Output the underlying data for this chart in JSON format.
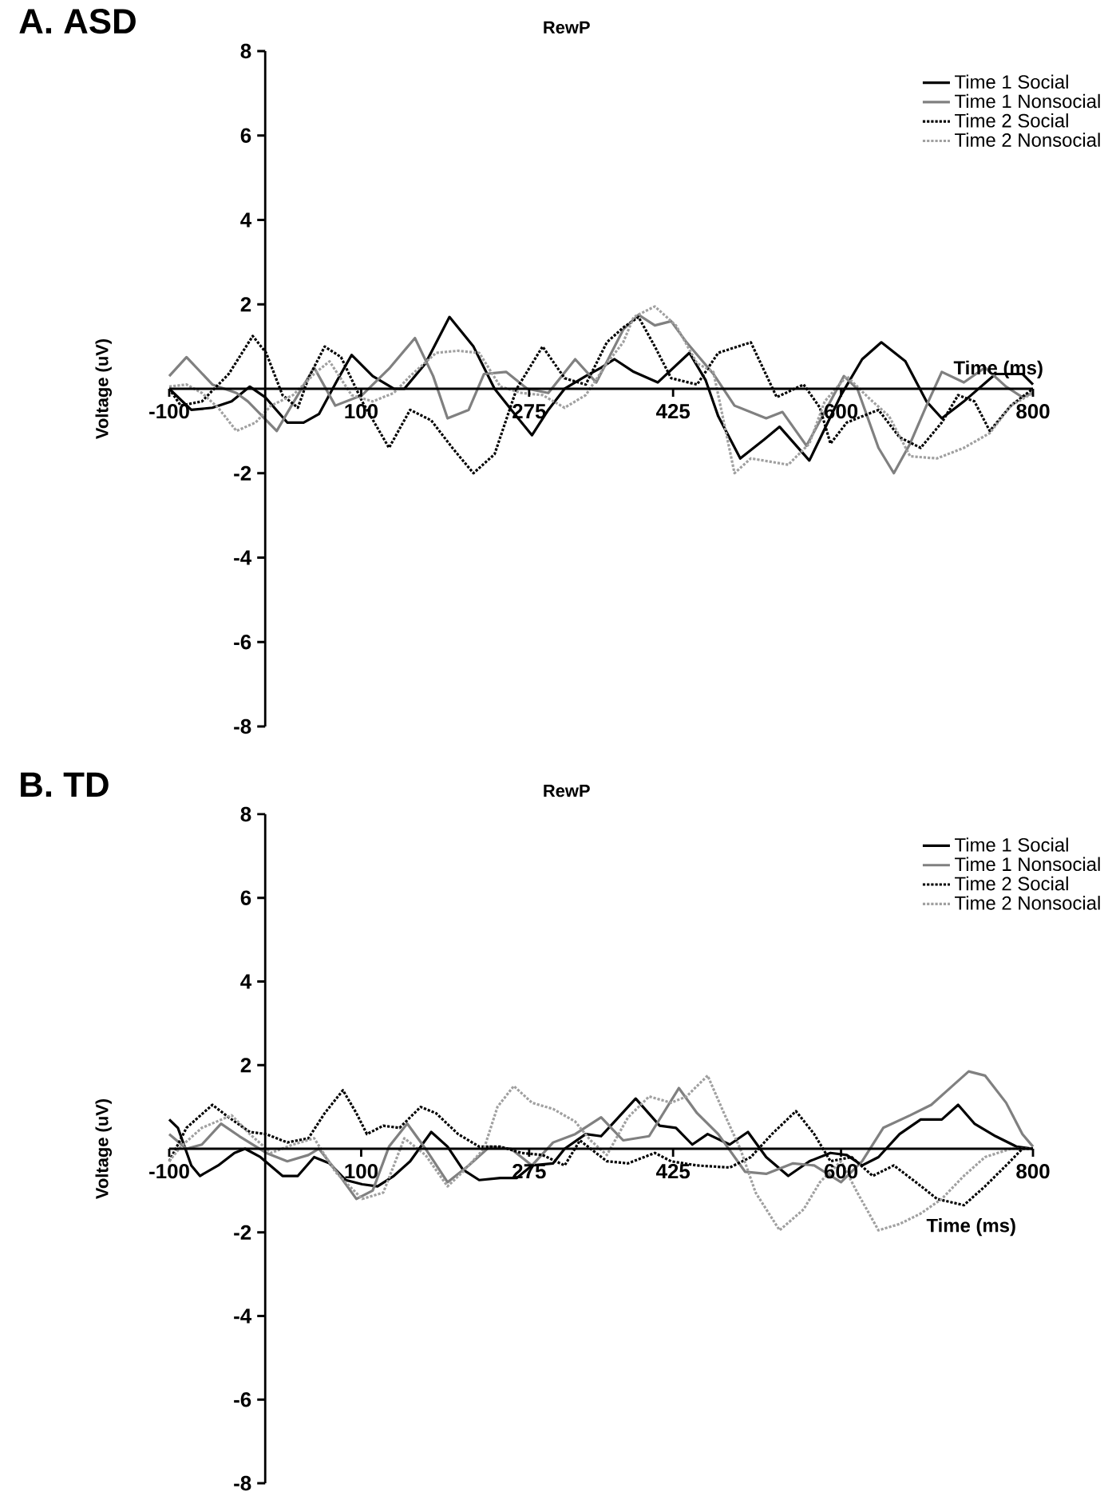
{
  "chart_data": [
    {
      "type": "line",
      "title": "A. ASD",
      "subtitle": "RewP",
      "xlabel": "Time (ms)",
      "ylabel": "Voltage (uV)",
      "xlim": [
        -100,
        800
      ],
      "ylim": [
        -8,
        8
      ],
      "xticks": [
        -100,
        100,
        275,
        425,
        600,
        800
      ],
      "yticks": [
        -8,
        -6,
        -4,
        -2,
        2,
        4,
        6,
        8
      ],
      "legend": "top right",
      "series": [
        {
          "name": "Time 1 Social",
          "color": "#000000",
          "line_style": "solid",
          "x": [
            -100,
            -77,
            -55,
            -35,
            -16,
            0,
            23,
            40,
            56,
            75,
            90,
            112,
            134,
            145,
            167,
            192,
            217,
            239,
            260,
            278,
            295,
            312,
            334,
            350,
            364,
            384,
            409,
            442,
            459,
            472,
            495,
            520,
            536,
            567,
            600,
            622,
            642,
            667,
            689,
            705,
            728,
            761,
            789,
            800
          ],
          "values": [
            0,
            -0.5,
            -0.45,
            -0.3,
            0.05,
            -0.2,
            -0.8,
            -0.8,
            -0.6,
            0.2,
            0.8,
            0.3,
            0,
            0,
            0.6,
            1.7,
            1.0,
            0,
            -0.6,
            -1.1,
            -0.5,
            0,
            0.3,
            0.5,
            0.7,
            0.4,
            0.15,
            0.85,
            0.2,
            -0.65,
            -1.65,
            -1.2,
            -0.9,
            -1.7,
            -0.15,
            0.7,
            1.1,
            0.65,
            -0.3,
            -0.7,
            -0.3,
            0.35,
            0.35,
            0.1
          ]
        },
        {
          "name": "Time 1 Nonsocial",
          "color": "#808080",
          "line_style": "solid",
          "x": [
            -100,
            -82,
            -55,
            -30,
            -18,
            12,
            30,
            51,
            73,
            101,
            130,
            156,
            175,
            190,
            212,
            228,
            251,
            273,
            295,
            323,
            345,
            373,
            389,
            406,
            423,
            439,
            467,
            489,
            522,
            539,
            564,
            583,
            603,
            617,
            639,
            655,
            672,
            689,
            705,
            728,
            750,
            772,
            789,
            800
          ],
          "values": [
            0.3,
            0.75,
            0.1,
            -0.1,
            -0.3,
            -1.0,
            -0.3,
            0.5,
            -0.4,
            -0.15,
            0.5,
            1.2,
            0.3,
            -0.7,
            -0.5,
            0.35,
            0.4,
            0,
            -0.1,
            0.7,
            0.15,
            1.4,
            1.75,
            1.5,
            1.6,
            1.1,
            0.35,
            -0.4,
            -0.7,
            -0.55,
            -1.35,
            -0.55,
            0.3,
            0,
            -1.4,
            -2.0,
            -1.3,
            -0.4,
            0.4,
            0.15,
            0.5,
            0.05,
            -0.2,
            -0.1
          ]
        },
        {
          "name": "Time 2 Social",
          "color": "#000000",
          "line_style": "dotted",
          "x": [
            -100,
            -88,
            -66,
            -38,
            -13,
            1,
            18,
            34,
            45,
            62,
            79,
            101,
            129,
            151,
            173,
            195,
            217,
            239,
            262,
            289,
            312,
            334,
            356,
            373,
            389,
            406,
            423,
            450,
            472,
            506,
            533,
            561,
            578,
            589,
            606,
            639,
            661,
            683,
            705,
            722,
            739,
            755,
            777,
            800
          ],
          "values": [
            0,
            -0.4,
            -0.3,
            0.35,
            1.25,
            0.85,
            -0.15,
            -0.45,
            0.25,
            1.0,
            0.75,
            -0.3,
            -1.4,
            -0.5,
            -0.75,
            -1.4,
            -2.0,
            -1.55,
            0,
            1.0,
            0.25,
            0.1,
            1.1,
            1.45,
            1.7,
            1.0,
            0.25,
            0.1,
            0.85,
            1.1,
            -0.2,
            0.1,
            -0.45,
            -1.3,
            -0.8,
            -0.5,
            -1.15,
            -1.4,
            -0.8,
            -0.15,
            -0.3,
            -1.0,
            -0.4,
            0
          ]
        },
        {
          "name": "Time 2 Nonsocial",
          "color": "#a0a0a0",
          "line_style": "dotted",
          "x": [
            -100,
            -82,
            -66,
            -49,
            -30,
            -10,
            6,
            29,
            51,
            67,
            90,
            112,
            134,
            151,
            178,
            201,
            223,
            245,
            267,
            289,
            312,
            334,
            356,
            373,
            384,
            406,
            428,
            450,
            467,
            489,
            506,
            545,
            567,
            583,
            606,
            628,
            650,
            672,
            700,
            728,
            755,
            777,
            800
          ],
          "values": [
            0.05,
            0.1,
            -0.1,
            -0.45,
            -1.0,
            -0.8,
            -0.4,
            -0.15,
            0.35,
            0.65,
            -0.15,
            -0.3,
            -0.1,
            0.3,
            0.85,
            0.9,
            0.85,
            0.05,
            -0.1,
            -0.15,
            -0.45,
            -0.15,
            0.6,
            1.1,
            1.7,
            1.95,
            1.5,
            0.6,
            0.4,
            -2.0,
            -1.65,
            -1.8,
            -1.3,
            -0.3,
            0.3,
            -0.2,
            -0.65,
            -1.6,
            -1.65,
            -1.4,
            -1.05,
            -0.4,
            -0.1
          ]
        }
      ]
    },
    {
      "type": "line",
      "title": "B. TD",
      "subtitle": "RewP",
      "xlabel": "Time (ms)",
      "ylabel": "Voltage (uV)",
      "xlim": [
        -100,
        800
      ],
      "ylim": [
        -8,
        8
      ],
      "xticks": [
        -100,
        100,
        275,
        425,
        600,
        800
      ],
      "yticks": [
        -8,
        -6,
        -4,
        -2,
        2,
        4,
        6,
        8
      ],
      "legend": "top right",
      "series": [
        {
          "name": "Time 1 Social",
          "color": "#000000",
          "line_style": "solid",
          "x": [
            -100,
            -91,
            -77,
            -68,
            -49,
            -32,
            -21,
            -5,
            18,
            34,
            51,
            67,
            84,
            101,
            117,
            134,
            151,
            173,
            190,
            206,
            223,
            245,
            262,
            278,
            300,
            312,
            334,
            350,
            362,
            386,
            411,
            428,
            445,
            461,
            484,
            503,
            522,
            545,
            567,
            589,
            606,
            622,
            639,
            661,
            683,
            705,
            722,
            739,
            761,
            783,
            800
          ],
          "values": [
            0.7,
            0.5,
            -0.4,
            -0.65,
            -0.4,
            -0.1,
            0,
            -0.2,
            -0.65,
            -0.65,
            -0.2,
            -0.35,
            -0.75,
            -0.85,
            -0.9,
            -0.65,
            -0.3,
            0.4,
            0.05,
            -0.5,
            -0.75,
            -0.7,
            -0.7,
            -0.4,
            -0.35,
            0,
            0.35,
            0.3,
            0.6,
            1.2,
            0.55,
            0.5,
            0.1,
            0.35,
            0.1,
            0.4,
            -0.2,
            -0.65,
            -0.3,
            -0.1,
            -0.15,
            -0.4,
            -0.2,
            0.35,
            0.7,
            0.7,
            1.05,
            0.6,
            0.3,
            0.05,
            0
          ]
        },
        {
          "name": "Time 1 Nonsocial",
          "color": "#808080",
          "line_style": "solid",
          "x": [
            -100,
            -82,
            -66,
            -46,
            -27,
            1,
            23,
            45,
            56,
            73,
            95,
            112,
            129,
            148,
            167,
            190,
            212,
            234,
            256,
            278,
            300,
            323,
            350,
            373,
            400,
            431,
            450,
            472,
            500,
            522,
            550,
            572,
            600,
            622,
            644,
            672,
            694,
            716,
            733,
            750,
            772,
            789,
            800
          ],
          "values": [
            0.35,
            0,
            0.1,
            0.6,
            0.3,
            -0.1,
            -0.3,
            -0.15,
            0,
            -0.5,
            -1.2,
            -1.0,
            0.05,
            0.6,
            0,
            -0.8,
            -0.4,
            0.05,
            0,
            -0.4,
            0.15,
            0.35,
            0.75,
            0.2,
            0.3,
            1.45,
            0.85,
            0.35,
            -0.55,
            -0.6,
            -0.35,
            -0.4,
            -0.8,
            -0.3,
            0.5,
            0.8,
            1.05,
            1.5,
            1.85,
            1.75,
            1.1,
            0.35,
            0.05
          ]
        },
        {
          "name": "Time 2 Social",
          "color": "#000000",
          "line_style": "dotted",
          "x": [
            -100,
            -82,
            -55,
            -38,
            -16,
            1,
            23,
            45,
            62,
            81,
            95,
            106,
            123,
            140,
            162,
            178,
            201,
            223,
            245,
            267,
            289,
            312,
            328,
            339,
            356,
            378,
            406,
            423,
            450,
            484,
            506,
            528,
            553,
            572,
            589,
            611,
            633,
            655,
            678,
            700,
            728,
            750,
            772,
            789,
            800
          ],
          "values": [
            -0.3,
            0.5,
            1.05,
            0.75,
            0.4,
            0.35,
            0.15,
            0.25,
            0.85,
            1.4,
            0.85,
            0.35,
            0.55,
            0.5,
            1.0,
            0.85,
            0.35,
            0.05,
            0.05,
            -0.1,
            -0.15,
            -0.4,
            0.2,
            0,
            -0.3,
            -0.35,
            -0.1,
            -0.3,
            -0.4,
            -0.45,
            -0.2,
            0.35,
            0.9,
            0.35,
            -0.3,
            -0.2,
            -0.65,
            -0.4,
            -0.8,
            -1.2,
            -1.35,
            -0.9,
            -0.4,
            0,
            0
          ]
        },
        {
          "name": "Time 2 Nonsocial",
          "color": "#a0a0a0",
          "line_style": "dotted",
          "x": [
            -100,
            -88,
            -66,
            -35,
            -16,
            6,
            29,
            51,
            73,
            101,
            123,
            145,
            167,
            190,
            206,
            228,
            242,
            259,
            278,
            300,
            323,
            339,
            356,
            378,
            400,
            423,
            439,
            461,
            478,
            495,
            511,
            536,
            561,
            578,
            600,
            617,
            639,
            661,
            683,
            705,
            728,
            750,
            777,
            800
          ],
          "values": [
            -0.3,
            0.05,
            0.5,
            0.8,
            0.35,
            -0.1,
            0.1,
            0.25,
            -0.55,
            -1.2,
            -1.05,
            0.25,
            -0.15,
            -0.9,
            -0.55,
            0,
            1.0,
            1.5,
            1.1,
            0.95,
            0.65,
            0.2,
            -0.15,
            0.75,
            1.25,
            1.1,
            1.25,
            1.75,
            0.85,
            0,
            -1.05,
            -1.95,
            -1.45,
            -0.8,
            -0.3,
            -1.05,
            -1.95,
            -1.8,
            -1.55,
            -1.2,
            -0.65,
            -0.2,
            0,
            0
          ]
        }
      ]
    }
  ]
}
